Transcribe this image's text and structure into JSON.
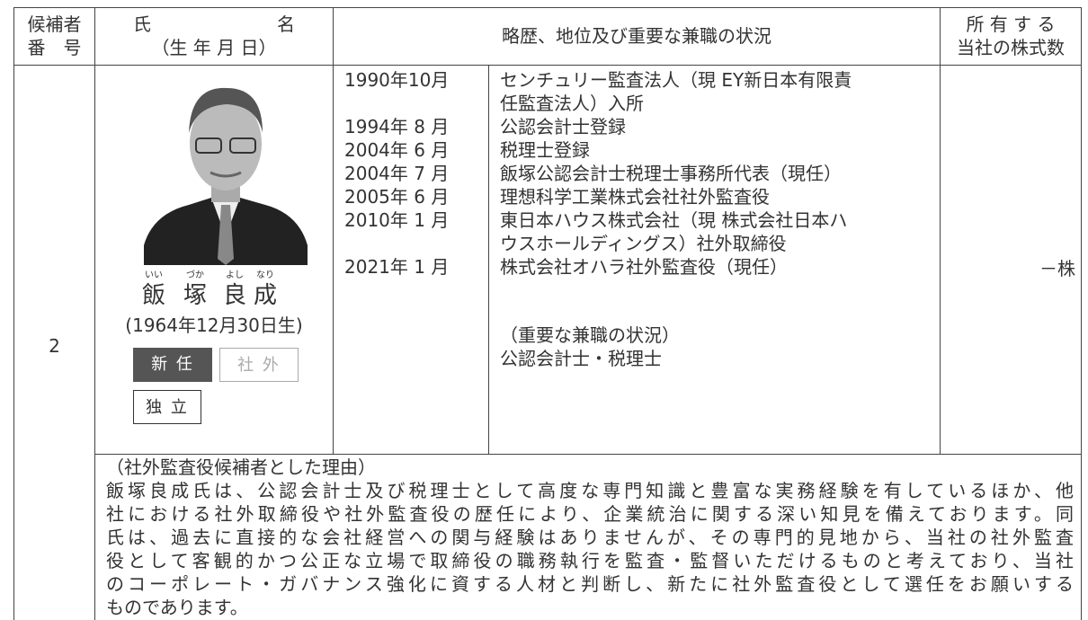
{
  "header": {
    "number": [
      "候補者",
      "番　号"
    ],
    "name": [
      "氏　　　　　　　名",
      "（生 年 月 日）"
    ],
    "career": "略歴、地位及び重要な兼職の状況",
    "shares": [
      "所 有 す る",
      "当社の株式数"
    ]
  },
  "candidate": {
    "number": "2",
    "name": [
      {
        "kanji": "飯",
        "ruby": "いい"
      },
      {
        "kanji": "塚",
        "ruby": "づか"
      },
      {
        "kanji": "良",
        "ruby": "よし"
      },
      {
        "kanji": "成",
        "ruby": "なり"
      }
    ],
    "birth": "(1964年12月30日生)",
    "badges": [
      "新 任",
      "社 外",
      "独 立"
    ],
    "history": [
      {
        "date": "1990年10月",
        "lines": [
          "センチュリー監査法人（現 EY新日本有限責",
          "任監査法人）入所"
        ]
      },
      {
        "date": "1994年 8 月",
        "lines": [
          "公認会計士登録"
        ]
      },
      {
        "date": "2004年 6 月",
        "lines": [
          "税理士登録"
        ]
      },
      {
        "date": "2004年 7 月",
        "lines": [
          "飯塚公認会計士税理士事務所代表（現任）"
        ]
      },
      {
        "date": "2005年 6 月",
        "lines": [
          "理想科学工業株式会社社外監査役"
        ]
      },
      {
        "date": "2010年 1 月",
        "lines": [
          "東日本ハウス株式会社（現 株式会社日本ハ",
          "ウスホールディングス）社外取締役"
        ]
      },
      {
        "date": "2021年 1 月",
        "lines": [
          "株式会社オハラ社外監査役（現任）"
        ]
      }
    ],
    "concurrent": {
      "title": "（重要な兼職の状況）",
      "text": "公認会計士・税理士"
    },
    "shares": "－株",
    "reason": {
      "title": "（社外監査役候補者とした理由）",
      "lines": [
        "飯塚良成氏は、公認会計士及び税理士として高度な専門知識と豊富な実務経験を有しているほか、他",
        "社における社外取締役や社外監査役の歴任により、企業統治に関する深い知見を備えております。同",
        "氏は、過去に直接的な会社経営への関与経験はありませんが、その専門的見地から、当社の社外監査",
        "役として客観的かつ公正な立場で取締役の職務執行を監査・監督いただけるものと考えており、当社",
        "のコーポレート・ガバナンス強化に資する人材と判断し、新たに社外監査役として選任をお願いする",
        "ものであります。"
      ]
    }
  }
}
